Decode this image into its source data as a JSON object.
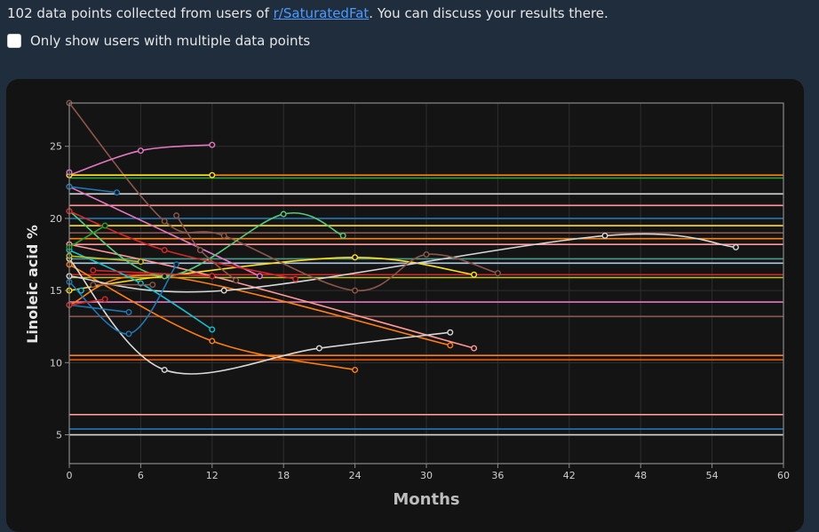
{
  "intro": {
    "prefix": "102 data points collected from users of ",
    "link": "r/SaturatedFat",
    "suffix": ". You can discuss your results there."
  },
  "filter": {
    "label": "Only show users with multiple data points",
    "checked": false
  },
  "chart_data": {
    "type": "line",
    "xlabel": "Months",
    "ylabel": "Linoleic acid %",
    "xlim": [
      0,
      60
    ],
    "ylim": [
      3,
      28
    ],
    "xticks": [
      0,
      6,
      12,
      18,
      24,
      30,
      36,
      42,
      48,
      54,
      60
    ],
    "yticks": [
      5,
      10,
      15,
      20,
      25
    ],
    "grid": true,
    "series": [
      {
        "color": "#ff7f0e",
        "points": [
          [
            0,
            23.0
          ],
          [
            60,
            23.0
          ]
        ]
      },
      {
        "color": "#2ca02c",
        "points": [
          [
            0,
            22.8
          ],
          [
            60,
            22.8
          ]
        ]
      },
      {
        "color": "#d7d7d7",
        "points": [
          [
            0,
            21.7
          ],
          [
            60,
            21.7
          ]
        ]
      },
      {
        "color": "#ff9896",
        "points": [
          [
            0,
            20.9
          ],
          [
            60,
            20.9
          ]
        ]
      },
      {
        "color": "#1f77b4",
        "points": [
          [
            0,
            20.0
          ],
          [
            60,
            20.0
          ]
        ]
      },
      {
        "color": "#ffe119",
        "points": [
          [
            0,
            19.5
          ],
          [
            60,
            19.5
          ]
        ]
      },
      {
        "color": "#8c564b",
        "points": [
          [
            0,
            19.0
          ],
          [
            60,
            19.0
          ]
        ]
      },
      {
        "color": "#ff7f0e",
        "points": [
          [
            0,
            18.6
          ],
          [
            60,
            18.6
          ]
        ]
      },
      {
        "color": "#ff9896",
        "points": [
          [
            0,
            18.2
          ],
          [
            60,
            18.2
          ]
        ]
      },
      {
        "color": "#4e9a8a",
        "points": [
          [
            0,
            17.2
          ],
          [
            60,
            17.2
          ]
        ]
      },
      {
        "color": "#aec7e8",
        "points": [
          [
            0,
            16.9
          ],
          [
            60,
            16.9
          ]
        ]
      },
      {
        "color": "#d62728",
        "points": [
          [
            0,
            16.1
          ],
          [
            60,
            16.1
          ]
        ]
      },
      {
        "color": "#bcbd22",
        "points": [
          [
            0,
            15.9
          ],
          [
            60,
            15.9
          ]
        ]
      },
      {
        "color": "#e377c2",
        "points": [
          [
            0,
            14.2
          ],
          [
            60,
            14.2
          ]
        ]
      },
      {
        "color": "#8c564b",
        "points": [
          [
            0,
            13.2
          ],
          [
            60,
            13.2
          ]
        ]
      },
      {
        "color": "#ff7f0e",
        "points": [
          [
            0,
            10.5
          ],
          [
            60,
            10.5
          ]
        ]
      },
      {
        "color": "#e6550d",
        "points": [
          [
            0,
            10.2
          ],
          [
            60,
            10.2
          ]
        ]
      },
      {
        "color": "#ff9896",
        "points": [
          [
            0,
            6.4
          ],
          [
            60,
            6.4
          ]
        ]
      },
      {
        "color": "#1f77b4",
        "points": [
          [
            0,
            5.4
          ],
          [
            60,
            5.4
          ]
        ]
      },
      {
        "color": "#d7d7d7",
        "points": [
          [
            0,
            5.0
          ],
          [
            60,
            5.0
          ]
        ]
      },
      {
        "color": "#ffe119",
        "points": [
          [
            0,
            15.0
          ],
          [
            8,
            16.0
          ],
          [
            24,
            17.3
          ],
          [
            34,
            16.1
          ]
        ]
      },
      {
        "color": "#ff7f0e",
        "points": [
          [
            0,
            14.0
          ],
          [
            8,
            16.0
          ],
          [
            32,
            11.2
          ]
        ]
      },
      {
        "color": "#ff7f0e",
        "points": [
          [
            0,
            16.8
          ],
          [
            12,
            11.5
          ],
          [
            24,
            9.5
          ]
        ]
      },
      {
        "color": "#ff9896",
        "points": [
          [
            0,
            18.2
          ],
          [
            12,
            16.0
          ],
          [
            34,
            11.0
          ]
        ]
      },
      {
        "color": "#d7d7d7",
        "points": [
          [
            0,
            17.2
          ],
          [
            8,
            9.5
          ],
          [
            21,
            11.0
          ],
          [
            32,
            12.1
          ]
        ]
      },
      {
        "color": "#d7d7d7",
        "points": [
          [
            0,
            16.0
          ],
          [
            13,
            15.0
          ],
          [
            45,
            18.8
          ],
          [
            56,
            18.0
          ]
        ]
      },
      {
        "color": "#8c564b",
        "points": [
          [
            0,
            28.0
          ],
          [
            8,
            19.8
          ],
          [
            13,
            18.8
          ],
          [
            24,
            15.0
          ],
          [
            30,
            17.5
          ],
          [
            36,
            16.2
          ]
        ]
      },
      {
        "color": "#e377c2",
        "points": [
          [
            0,
            23.0
          ],
          [
            6,
            24.7
          ],
          [
            12,
            25.1
          ]
        ]
      },
      {
        "color": "#e377c2",
        "points": [
          [
            0,
            22.2
          ],
          [
            16,
            16.0
          ]
        ]
      },
      {
        "color": "#5ac878",
        "points": [
          [
            0,
            20.5
          ],
          [
            8,
            16.0
          ],
          [
            18,
            20.3
          ],
          [
            23,
            18.8
          ]
        ]
      },
      {
        "color": "#d62728",
        "points": [
          [
            0,
            20.5
          ],
          [
            8,
            17.8
          ],
          [
            19,
            15.8
          ]
        ]
      },
      {
        "color": "#1f77b4",
        "points": [
          [
            0,
            22.2
          ],
          [
            4,
            21.8
          ]
        ]
      },
      {
        "color": "#17becf",
        "points": [
          [
            0,
            17.8
          ],
          [
            6,
            15.5
          ],
          [
            12,
            12.3
          ]
        ]
      },
      {
        "color": "#1f77b4",
        "points": [
          [
            0,
            15.6
          ],
          [
            5,
            12.0
          ],
          [
            9,
            16.8
          ]
        ]
      },
      {
        "color": "#1f77b4",
        "points": [
          [
            0,
            14.0
          ],
          [
            5,
            13.5
          ]
        ]
      },
      {
        "color": "#d62728",
        "points": [
          [
            0,
            14.0
          ],
          [
            3,
            14.4
          ]
        ]
      },
      {
        "color": "#d62728",
        "points": [
          [
            2,
            16.4
          ],
          [
            12,
            16.0
          ]
        ]
      },
      {
        "color": "#bcbd22",
        "points": [
          [
            0,
            17.4
          ],
          [
            6,
            17.0
          ]
        ]
      },
      {
        "color": "#8c564b",
        "points": [
          [
            9,
            20.2
          ],
          [
            11,
            17.8
          ],
          [
            14,
            15.7
          ]
        ]
      },
      {
        "color": "#2ca02c",
        "points": [
          [
            0,
            18.0
          ],
          [
            3,
            19.5
          ]
        ]
      },
      {
        "color": "#ffe119",
        "points": [
          [
            0,
            23.0
          ],
          [
            12,
            23.0
          ]
        ]
      },
      {
        "color": "#e377c2",
        "points": [
          [
            0,
            23.2
          ]
        ]
      },
      {
        "color": "#17becf",
        "points": [
          [
            1,
            15.0
          ]
        ]
      },
      {
        "color": "#8c564b",
        "points": [
          [
            2,
            15.4
          ],
          [
            7,
            15.4
          ]
        ]
      }
    ]
  }
}
